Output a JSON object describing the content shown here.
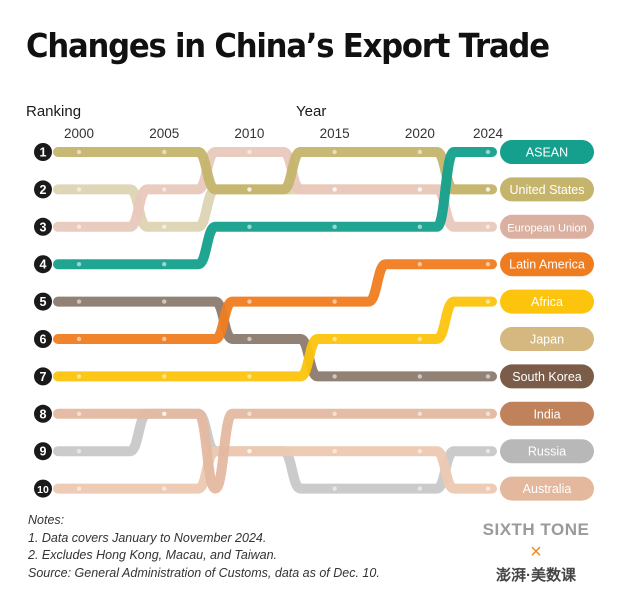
{
  "title": "Changes in China’s Export Trade",
  "notes": {
    "heading": "Notes:",
    "lines": [
      "1. Data covers January to November 2024.",
      "2. Excludes Hong Kong, Macau, and Taiwan.",
      "Source: General Administration of Customs, data as of Dec. 10."
    ]
  },
  "brand": {
    "name": "SIXTH TONE",
    "separator": "×",
    "partner": "澎湃·美数课"
  },
  "chart_data": {
    "type": "line",
    "ylabel": "Ranking",
    "xlabel": "Year",
    "x": [
      1999,
      2000,
      2001,
      2002,
      2003,
      2004,
      2005,
      2006,
      2007,
      2008,
      2009,
      2010,
      2011,
      2012,
      2013,
      2014,
      2015,
      2016,
      2017,
      2018,
      2019,
      2020,
      2021,
      2022,
      2023,
      2024
    ],
    "x_tick_labels": [
      "2000",
      "2005",
      "2010",
      "2015",
      "2020",
      "2024"
    ],
    "x_tick_values": [
      2000,
      2005,
      2010,
      2015,
      2020,
      2024
    ],
    "y_tick_labels": [
      "1",
      "2",
      "3",
      "4",
      "5",
      "6",
      "7",
      "8",
      "9",
      "10"
    ],
    "y_inverted": true,
    "ylim": [
      1,
      10
    ],
    "series": [
      {
        "name": "ASEAN",
        "color": "#14a08c",
        "ranks": [
          4,
          4,
          4,
          4,
          4,
          4,
          4,
          4,
          4,
          3,
          3,
          3,
          3,
          3,
          3,
          3,
          3,
          3,
          3,
          3,
          3,
          3,
          3,
          1,
          1,
          1
        ]
      },
      {
        "name": "United States",
        "color": "#ddd4b4",
        "ranks": [
          2,
          2,
          2,
          2,
          2,
          3,
          3,
          3,
          3,
          2,
          2,
          2,
          2,
          2,
          2,
          2,
          2,
          2,
          2,
          2,
          2,
          2,
          2,
          2,
          2,
          2
        ]
      },
      {
        "name": "European Union",
        "color": "#e8c8bc",
        "ranks": [
          3,
          3,
          3,
          3,
          3,
          2,
          2,
          2,
          2,
          1,
          1,
          1,
          1,
          1,
          2,
          2,
          2,
          2,
          2,
          2,
          2,
          2,
          2,
          3,
          3,
          3
        ]
      },
      {
        "name": "Latin America",
        "color": "#f07c20",
        "ranks": [
          6,
          6,
          6,
          6,
          6,
          6,
          6,
          6,
          6,
          6,
          5,
          5,
          5,
          5,
          5,
          5,
          5,
          5,
          5,
          4,
          4,
          4,
          4,
          4,
          4,
          4
        ]
      },
      {
        "name": "Africa",
        "color": "#fcc40c",
        "ranks": [
          7,
          7,
          7,
          7,
          7,
          7,
          7,
          7,
          7,
          7,
          7,
          7,
          7,
          7,
          7,
          6,
          6,
          6,
          6,
          6,
          6,
          6,
          6,
          5,
          5,
          5
        ]
      },
      {
        "name": "Japan",
        "color": "#c4b46c",
        "ranks": [
          1,
          1,
          1,
          1,
          1,
          1,
          1,
          1,
          1,
          2,
          2,
          2,
          2,
          2,
          1,
          1,
          1,
          1,
          1,
          1,
          1,
          1,
          1,
          2,
          2,
          2
        ]
      },
      {
        "name": "South Korea",
        "color": "#8c7a6e",
        "ranks": [
          5,
          5,
          5,
          5,
          5,
          5,
          5,
          5,
          5,
          5,
          6,
          6,
          6,
          6,
          6,
          7,
          7,
          7,
          7,
          7,
          7,
          7,
          7,
          7,
          7,
          7
        ]
      },
      {
        "name": "India",
        "color": "#e4b8a0",
        "ranks": [
          8,
          8,
          8,
          8,
          8,
          8,
          8,
          8,
          8,
          10,
          8,
          8,
          8,
          8,
          8,
          8,
          8,
          8,
          8,
          8,
          8,
          8,
          8,
          8,
          8,
          8
        ]
      },
      {
        "name": "Russia",
        "color": "#c8c8c8",
        "ranks": [
          9,
          9,
          9,
          9,
          9,
          8,
          8,
          8,
          8,
          9,
          9,
          9,
          9,
          9,
          10,
          10,
          10,
          10,
          10,
          10,
          10,
          10,
          10,
          9,
          9,
          9
        ]
      },
      {
        "name": "Australia",
        "color": "#ecc8b0",
        "ranks": [
          10,
          10,
          10,
          10,
          10,
          10,
          10,
          10,
          10,
          9,
          9,
          9,
          9,
          9,
          9,
          9,
          9,
          9,
          9,
          9,
          9,
          9,
          9,
          10,
          10,
          10
        ]
      }
    ],
    "legend": {
      "placement": "right",
      "order": [
        "ASEAN",
        "United States",
        "European Union",
        "Latin America",
        "Africa",
        "Japan",
        "South Korea",
        "India",
        "Russia",
        "Australia"
      ],
      "colors": [
        "#14a08c",
        "#c4b46c",
        "#dcb0a0",
        "#f07c20",
        "#fcc40c",
        "#d4b880",
        "#7a5c48",
        "#c0825a",
        "#b8b8b8",
        "#e4b89c"
      ]
    },
    "grid": false
  }
}
